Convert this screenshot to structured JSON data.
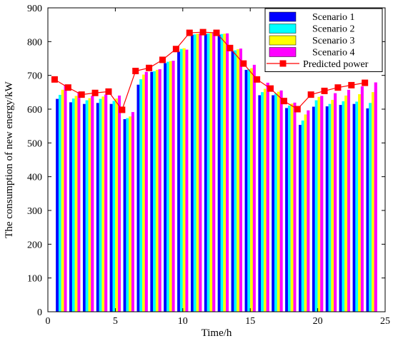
{
  "chart_data": {
    "type": "bar",
    "title": "",
    "xlabel": "Time/h",
    "ylabel": "The consumption of new energy/kW",
    "xlim": [
      0,
      25
    ],
    "ylim": [
      0,
      900
    ],
    "x_ticks": [
      0,
      5,
      10,
      15,
      20,
      25
    ],
    "y_ticks": [
      0,
      100,
      200,
      300,
      400,
      500,
      600,
      700,
      800,
      900
    ],
    "grid": false,
    "legend_position": "top-right",
    "x": [
      1,
      2,
      3,
      4,
      5,
      6,
      7,
      8,
      9,
      10,
      11,
      12,
      13,
      14,
      15,
      16,
      17,
      18,
      19,
      20,
      21,
      22,
      23,
      24
    ],
    "series": [
      {
        "name": "Scenario 1",
        "kind": "bar",
        "color": "#0000ff",
        "values": [
          630,
          620,
          615,
          618,
          615,
          570,
          672,
          710,
          736,
          770,
          820,
          822,
          820,
          772,
          716,
          641,
          641,
          603,
          553,
          607,
          608,
          612,
          615,
          602
        ]
      },
      {
        "name": "Scenario 2",
        "kind": "bar",
        "color": "#00ffff",
        "values": [
          642,
          631,
          626,
          630,
          624,
          573,
          688,
          712,
          740,
          778,
          821,
          824,
          822,
          774,
          718,
          650,
          646,
          610,
          566,
          626,
          615,
          623,
          622,
          618
        ]
      },
      {
        "name": "Scenario 3",
        "kind": "bar",
        "color": "#ffff00",
        "values": [
          657,
          639,
          632,
          637,
          631,
          578,
          702,
          716,
          742,
          780,
          823,
          825,
          823,
          777,
          721,
          660,
          651,
          616,
          584,
          636,
          627,
          640,
          644,
          650
        ]
      },
      {
        "name": "Scenario 4",
        "kind": "bar",
        "color": "#ff00ff",
        "values": [
          672,
          650,
          639,
          643,
          640,
          591,
          710,
          718,
          743,
          776,
          824,
          826,
          824,
          779,
          731,
          678,
          655,
          619,
          596,
          639,
          647,
          657,
          667,
          679
        ]
      },
      {
        "name": "Predicted power",
        "kind": "line",
        "color": "#ff0000",
        "values": [
          688,
          664,
          643,
          648,
          652,
          598,
          713,
          722,
          746,
          778,
          826,
          828,
          826,
          781,
          735,
          688,
          661,
          624,
          600,
          643,
          654,
          664,
          671,
          678
        ]
      }
    ]
  }
}
